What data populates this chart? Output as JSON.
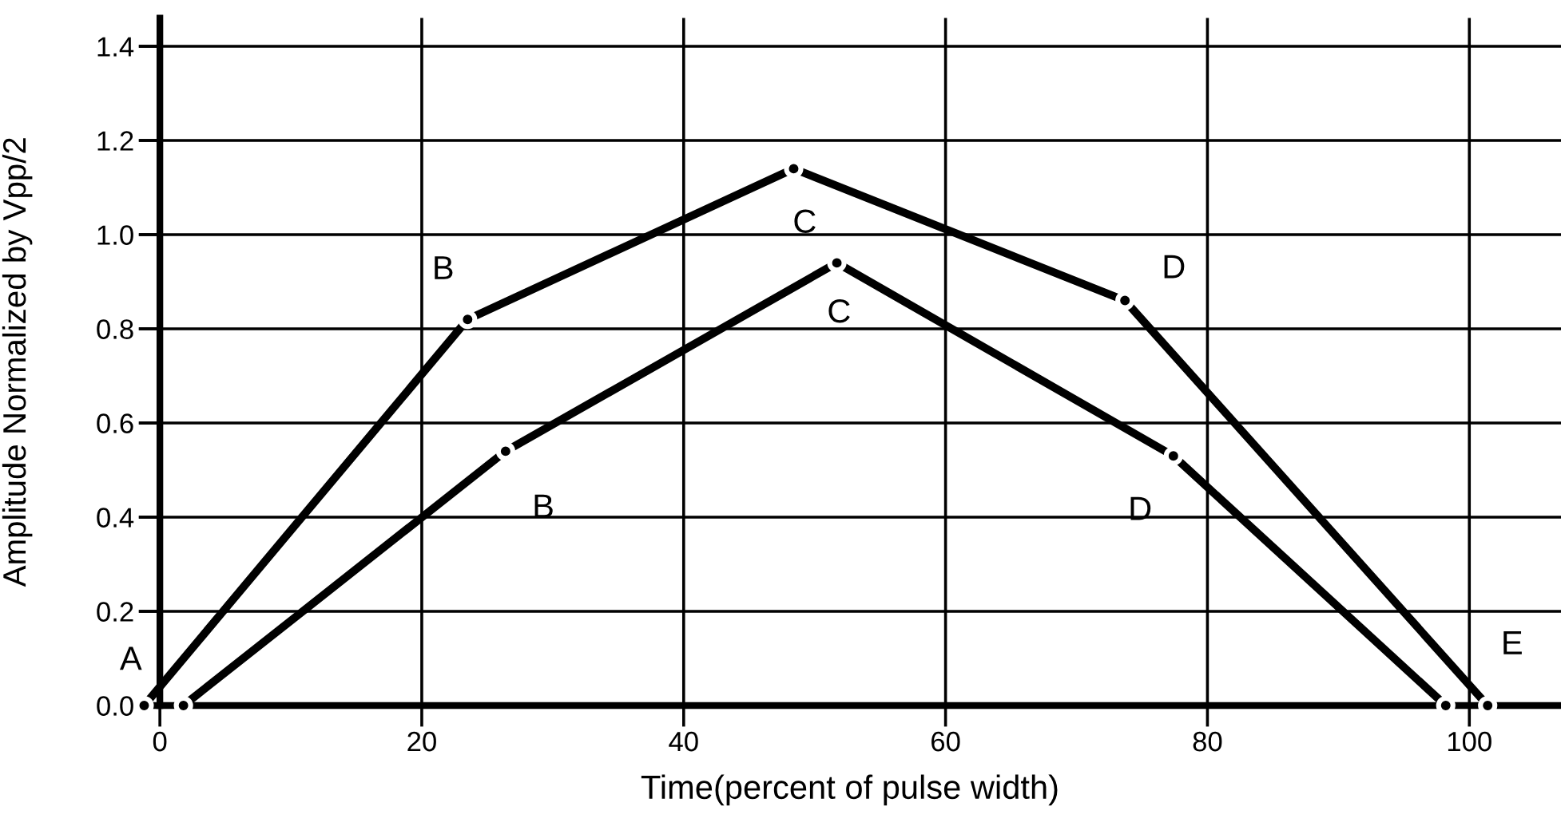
{
  "chart_data": {
    "type": "line",
    "xlabel": "Time(percent of pulse width)",
    "ylabel": "Amplitude Normalized by Vpp/2",
    "series": [
      {
        "color": "#000000",
        "x": [
          -1.2,
          23.5,
          48.4,
          73.7,
          101.4
        ],
        "values": [
          0.0,
          0.82,
          1.14,
          0.86,
          0.0
        ]
      },
      {
        "color": "#000000",
        "x": [
          1.8,
          26.4,
          51.7,
          77.4,
          98.2
        ],
        "values": [
          0.0,
          0.54,
          0.94,
          0.53,
          0.0
        ]
      }
    ],
    "xlim": [
      -1.6,
      107
    ],
    "xticks": [
      0,
      20,
      40,
      60,
      80,
      100
    ],
    "ylim": [
      0,
      1.46
    ],
    "yticks": [
      {
        "value": 0,
        "label": "0.0"
      },
      0.2,
      0.4,
      0.6,
      0.8,
      {
        "value": 1,
        "label": "1.0"
      },
      1.2,
      1.4
    ],
    "grid": true,
    "marker": "circle",
    "line_style": "solid",
    "annotations": [
      {
        "text": "A",
        "x": -1.2,
        "y": 0.0
      },
      {
        "text": "B",
        "x": 23.5,
        "y": 0.82
      },
      {
        "text": "C",
        "x": 48.4,
        "y": 1.14
      },
      {
        "text": "D",
        "x": 73.7,
        "y": 0.86
      },
      {
        "text": "E",
        "x": 101.4,
        "y": 0.0
      },
      {
        "text": "B",
        "x": 26.4,
        "y": 0.54
      },
      {
        "text": "C",
        "x": 51.7,
        "y": 0.94
      },
      {
        "text": "D",
        "x": 77.4,
        "y": 0.53
      }
    ]
  }
}
